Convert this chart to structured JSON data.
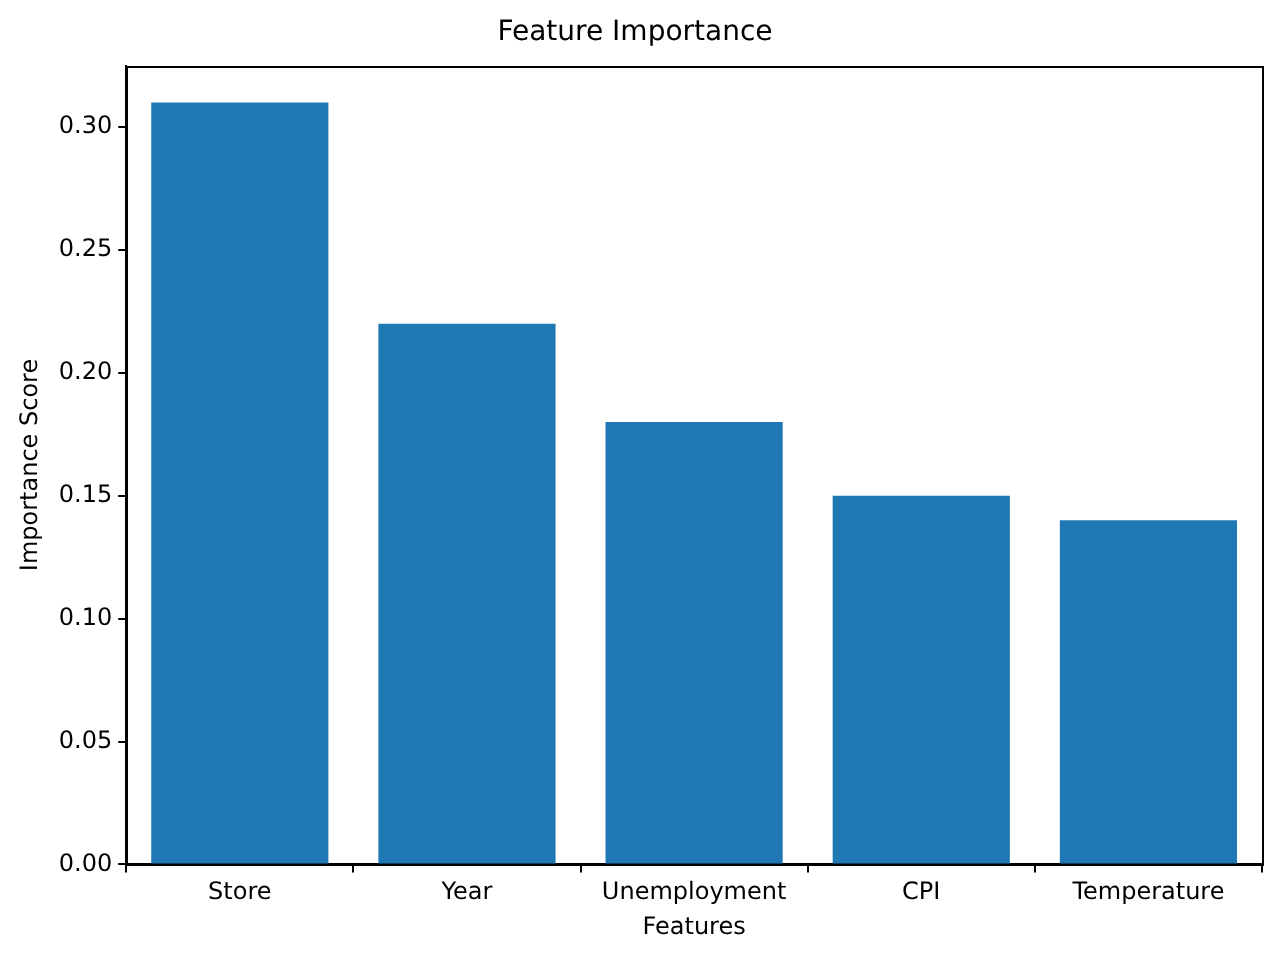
{
  "chart_data": {
    "type": "bar",
    "title": "Feature Importance",
    "xlabel": "Features",
    "ylabel": "Importance Score",
    "categories": [
      "Store",
      "Year",
      "Unemployment",
      "CPI",
      "Temperature"
    ],
    "values": [
      0.31,
      0.22,
      0.18,
      0.15,
      0.14
    ],
    "color": "#1f77b4",
    "ylim": [
      0,
      0.325
    ],
    "yticks": [
      {
        "value": 0,
        "label": "0.00"
      },
      {
        "value": 0.05,
        "label": "0.05"
      },
      {
        "value": 0.1,
        "label": "0.10"
      },
      {
        "value": 0.15,
        "label": "0.15"
      },
      {
        "value": 0.2,
        "label": "0.20"
      },
      {
        "value": 0.25,
        "label": "0.25"
      },
      {
        "value": 0.3,
        "label": "0.30"
      }
    ],
    "grid": false,
    "legend": false
  }
}
